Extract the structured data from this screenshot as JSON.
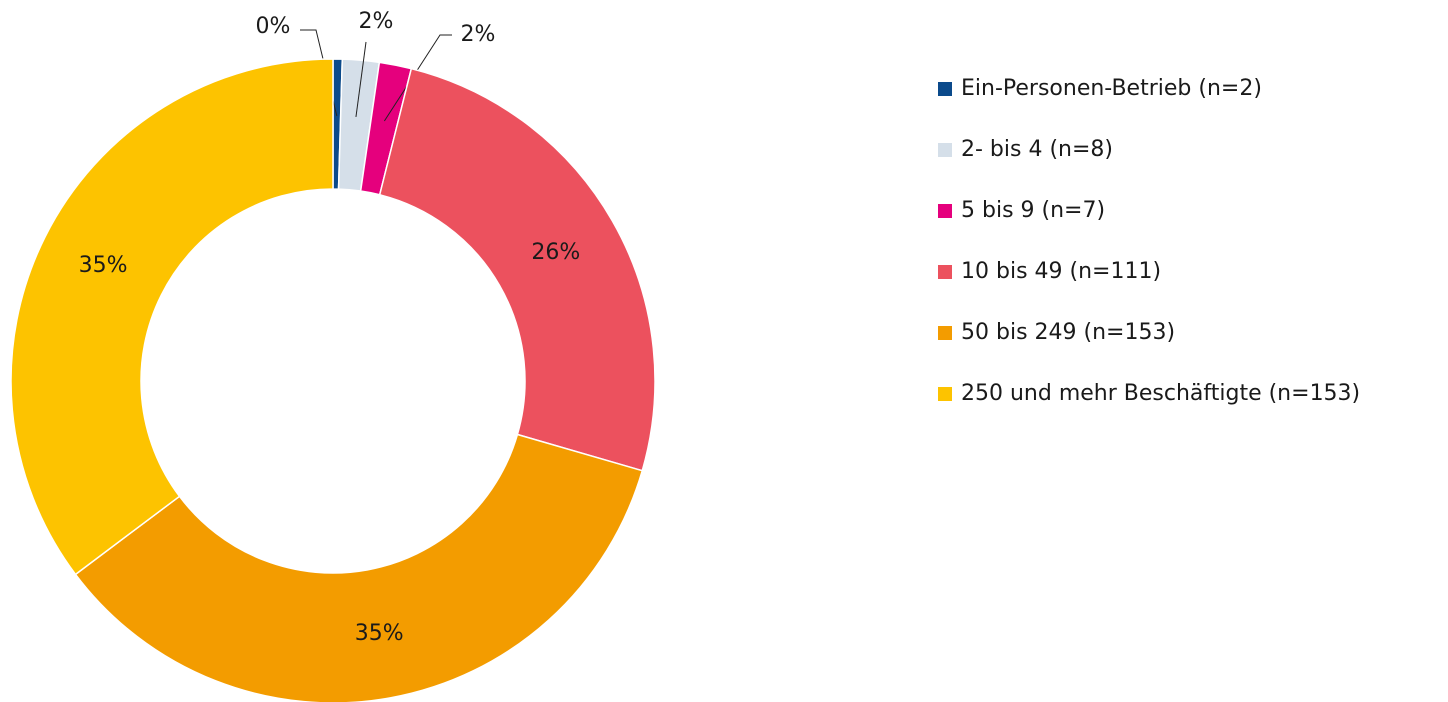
{
  "chart_data": {
    "type": "donut",
    "categories": [
      "Ein-Personen-Betrieb  (n=2)",
      "2- bis 4 (n=8)",
      "5 bis 9  (n=7)",
      "10 bis 49  (n=111)",
      "50 bis 249 (n=153)",
      "250 und mehr Beschäftigte (n=153)"
    ],
    "values": [
      0.46,
      1.84,
      1.61,
      25.58,
      35.25,
      35.25
    ],
    "value_labels": [
      "0%",
      "2%",
      "2%",
      "26%",
      "35%",
      "35%"
    ],
    "colors": [
      "#0b4a8b",
      "#d5dfe9",
      "#e5007d",
      "#ec515e",
      "#f39c00",
      "#fdc300"
    ],
    "legend": "right"
  }
}
